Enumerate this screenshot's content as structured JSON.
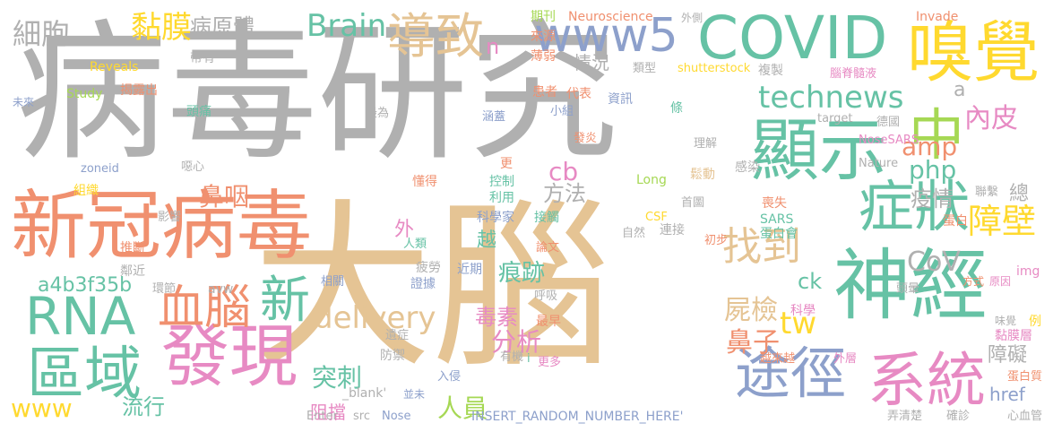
{
  "palette": {
    "gray": "#b0b0b0",
    "orange": "#f0906f",
    "green": "#66c2a5",
    "pink": "#e78ac3",
    "blue": "#8da0cb",
    "yellow": "#ffd92f",
    "tan": "#e5c494",
    "lime": "#a6d854"
  },
  "words": [
    {
      "text": "病毒研究",
      "color": "gray"
    },
    {
      "text": "大腦",
      "color": "tan"
    },
    {
      "text": "新冠病毒",
      "color": "orange"
    },
    {
      "text": "COVID",
      "color": "green"
    },
    {
      "text": "嗅覺",
      "color": "yellow"
    },
    {
      "text": "www5",
      "color": "blue"
    },
    {
      "text": "導致",
      "color": "tan"
    },
    {
      "text": "顯示",
      "color": "green"
    },
    {
      "text": "中",
      "color": "lime"
    },
    {
      "text": "神經",
      "color": "green"
    },
    {
      "text": "症狀",
      "color": "green"
    },
    {
      "text": "發現",
      "color": "pink"
    },
    {
      "text": "RNA",
      "color": "green"
    },
    {
      "text": "血腦",
      "color": "orange"
    },
    {
      "text": "區域",
      "color": "green"
    },
    {
      "text": "系統",
      "color": "pink"
    },
    {
      "text": "途徑",
      "color": "blue"
    },
    {
      "text": "新",
      "color": "green"
    },
    {
      "text": "找到",
      "color": "tan"
    },
    {
      "text": "technews",
      "color": "green"
    },
    {
      "text": "黏膜",
      "color": "yellow"
    },
    {
      "text": "病原體",
      "color": "gray"
    },
    {
      "text": "細胞",
      "color": "gray"
    },
    {
      "text": "Brain",
      "color": "green"
    },
    {
      "text": "障壁",
      "color": "yellow"
    },
    {
      "text": "內皮",
      "color": "pink"
    },
    {
      "text": "amp",
      "color": "orange"
    },
    {
      "text": "php",
      "color": "green"
    },
    {
      "text": "CoV",
      "color": "gray"
    },
    {
      "text": "鼻咽",
      "color": "orange"
    },
    {
      "text": "delivery",
      "color": "tan"
    },
    {
      "text": "痕跡",
      "color": "green"
    },
    {
      "text": "屍檢",
      "color": "tan"
    },
    {
      "text": "鼻子",
      "color": "orange"
    },
    {
      "text": "tw",
      "color": "yellow"
    },
    {
      "text": "ck",
      "color": "green"
    },
    {
      "text": "cb",
      "color": "pink"
    },
    {
      "text": "分析",
      "color": "pink"
    },
    {
      "text": "毒素",
      "color": "pink"
    },
    {
      "text": "突刺",
      "color": "green"
    },
    {
      "text": "阻擋",
      "color": "pink"
    },
    {
      "text": "人員",
      "color": "lime"
    },
    {
      "text": "流行",
      "color": "green"
    },
    {
      "text": "www",
      "color": "yellow"
    },
    {
      "text": "a4b3f35b",
      "color": "green"
    },
    {
      "text": "疫情",
      "color": "gray"
    },
    {
      "text": "方法",
      "color": "gray"
    },
    {
      "text": "情況",
      "color": "gray"
    },
    {
      "text": "外",
      "color": "pink"
    },
    {
      "text": "越",
      "color": "green"
    },
    {
      "text": "n",
      "color": "pink"
    },
    {
      "text": "a",
      "color": "gray"
    },
    {
      "text": "總",
      "color": "gray"
    },
    {
      "text": "障礙",
      "color": "gray"
    },
    {
      "text": "href",
      "color": "blue"
    },
    {
      "text": "期刊",
      "color": "lime"
    },
    {
      "text": "來源",
      "color": "orange"
    },
    {
      "text": "Neuroscience",
      "color": "orange"
    },
    {
      "text": "外側",
      "color": "gray"
    },
    {
      "text": "Invade",
      "color": "orange"
    },
    {
      "text": "薄弱",
      "color": "orange"
    },
    {
      "text": "類型",
      "color": "gray"
    },
    {
      "text": "shutterstock",
      "color": "yellow"
    },
    {
      "text": "複製",
      "color": "gray"
    },
    {
      "text": "腦脊髓液",
      "color": "pink"
    },
    {
      "text": "Reveals",
      "color": "yellow"
    },
    {
      "text": "帶有",
      "color": "gray"
    },
    {
      "text": "未來",
      "color": "blue"
    },
    {
      "text": "揭露出",
      "color": "orange"
    },
    {
      "text": "Study",
      "color": "lime"
    },
    {
      "text": "頭痛",
      "color": "green"
    },
    {
      "text": "患者",
      "color": "orange"
    },
    {
      "text": "代表",
      "color": "orange"
    },
    {
      "text": "資訊",
      "color": "blue"
    },
    {
      "text": "小組",
      "color": "blue"
    },
    {
      "text": "涵蓋",
      "color": "blue"
    },
    {
      "text": "最為",
      "color": "gray"
    },
    {
      "text": "條",
      "color": "green"
    },
    {
      "text": "target",
      "color": "gray"
    },
    {
      "text": "德國",
      "color": "gray"
    },
    {
      "text": "發炎",
      "color": "orange"
    },
    {
      "text": "理解",
      "color": "gray"
    },
    {
      "text": "NoseSARS",
      "color": "pink"
    },
    {
      "text": "噁心",
      "color": "gray"
    },
    {
      "text": "zoneid",
      "color": "blue"
    },
    {
      "text": "更",
      "color": "orange"
    },
    {
      "text": "控制",
      "color": "green"
    },
    {
      "text": "利用",
      "color": "green"
    },
    {
      "text": "懂得",
      "color": "orange"
    },
    {
      "text": "Long",
      "color": "lime"
    },
    {
      "text": "鬆動",
      "color": "tan"
    },
    {
      "text": "感染",
      "color": "gray"
    },
    {
      "text": "Nature",
      "color": "gray"
    },
    {
      "text": "組織",
      "color": "yellow"
    },
    {
      "text": "首圖",
      "color": "gray"
    },
    {
      "text": "喪失",
      "color": "orange"
    },
    {
      "text": "聯繫",
      "color": "gray"
    },
    {
      "text": "影響",
      "color": "gray"
    },
    {
      "text": "科學家",
      "color": "blue"
    },
    {
      "text": "接觸",
      "color": "green"
    },
    {
      "text": "CSF",
      "color": "yellow"
    },
    {
      "text": "連接",
      "color": "gray"
    },
    {
      "text": "SARS",
      "color": "green"
    },
    {
      "text": "蛋白會",
      "color": "green"
    },
    {
      "text": "蛋白",
      "color": "orange"
    },
    {
      "text": "推斷",
      "color": "orange"
    },
    {
      "text": "人類",
      "color": "green"
    },
    {
      "text": "論文",
      "color": "orange"
    },
    {
      "text": "自然",
      "color": "gray"
    },
    {
      "text": "初步",
      "color": "orange"
    },
    {
      "text": "鄰近",
      "color": "gray"
    },
    {
      "text": "疲勞",
      "color": "gray"
    },
    {
      "text": "近期",
      "color": "blue"
    },
    {
      "text": "頭暈",
      "color": "gray"
    },
    {
      "text": "方式",
      "color": "orange"
    },
    {
      "text": "原因",
      "color": "pink"
    },
    {
      "text": "環節",
      "color": "gray"
    },
    {
      "text": "avw",
      "color": "gray"
    },
    {
      "text": "相關",
      "color": "blue"
    },
    {
      "text": "證據",
      "color": "blue"
    },
    {
      "text": "img",
      "color": "pink"
    },
    {
      "text": "呼吸",
      "color": "gray"
    },
    {
      "text": "科學",
      "color": "pink"
    },
    {
      "text": "最早",
      "color": "orange"
    },
    {
      "text": "味覺",
      "color": "gray"
    },
    {
      "text": "例",
      "color": "yellow"
    },
    {
      "text": "遺症",
      "color": "gray"
    },
    {
      "text": "黏膜層",
      "color": "pink"
    },
    {
      "text": "防禦",
      "color": "gray"
    },
    {
      "text": "有機",
      "color": "gray"
    },
    {
      "text": "越來越",
      "color": "orange"
    },
    {
      "text": "外層",
      "color": "pink"
    },
    {
      "text": "更多",
      "color": "pink"
    },
    {
      "text": "i",
      "color": "green"
    },
    {
      "text": "入侵",
      "color": "blue"
    },
    {
      "text": "蛋白質",
      "color": "orange"
    },
    {
      "text": "_blank'",
      "color": "gray"
    },
    {
      "text": "並未",
      "color": "blue"
    },
    {
      "text": "Enter",
      "color": "gray"
    },
    {
      "text": "src",
      "color": "gray"
    },
    {
      "text": "Nose",
      "color": "blue"
    },
    {
      "text": "INSERT_RANDOM_NUMBER_HERE'",
      "color": "blue"
    },
    {
      "text": "弄清楚",
      "color": "gray"
    },
    {
      "text": "確診",
      "color": "gray"
    },
    {
      "text": "心血管",
      "color": "gray"
    }
  ]
}
